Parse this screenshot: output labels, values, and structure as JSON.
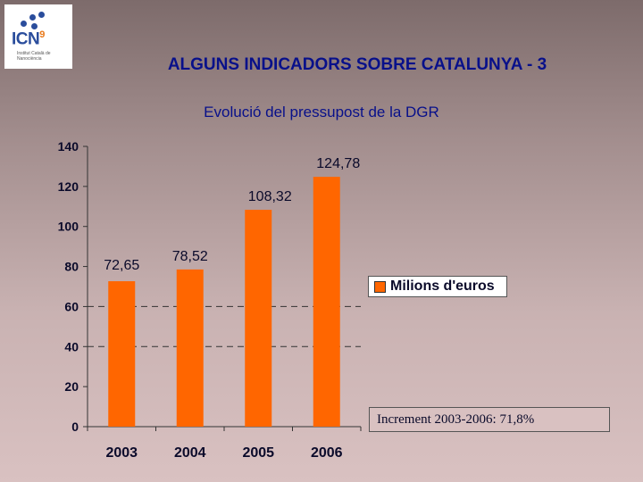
{
  "header": {
    "logo_text": "ICN",
    "logo_superscript": "9",
    "logo_subtext": "Institut Català de Nanociència",
    "main_title": "ALGUNS INDICADORS SOBRE CATALUNYA - 3"
  },
  "colors": {
    "bar": "#ff6600",
    "title": "#08108a",
    "text": "#0a0a2a"
  },
  "chart_data": {
    "type": "bar",
    "title": "Evolució del pressupost de la DGR",
    "categories": [
      "2003",
      "2004",
      "2005",
      "2006"
    ],
    "series": [
      {
        "name": "Milions d'euros",
        "values": [
          72.65,
          78.52,
          108.32,
          124.78
        ],
        "labels": [
          "72,65",
          "78,52",
          "108,32",
          "124,78"
        ]
      }
    ],
    "ylim": [
      0,
      140
    ],
    "yticks": [
      0,
      20,
      40,
      60,
      80,
      100,
      120,
      140
    ],
    "gridlines": [
      40,
      60
    ],
    "legend": "right",
    "annotation": "Increment 2003-2006: 71,8%"
  }
}
